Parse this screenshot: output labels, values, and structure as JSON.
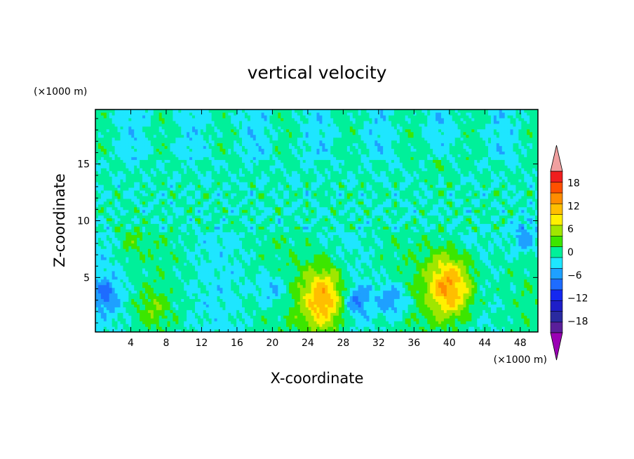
{
  "chart_data": {
    "type": "heatmap",
    "title": "vertical velocity",
    "xlabel": "X-coordinate",
    "ylabel": "Z-coordinate",
    "x_unit": "(×1000 m)",
    "y_unit": "(×1000 m)",
    "xlim": [
      0,
      50
    ],
    "ylim": [
      0.2,
      19.8
    ],
    "x_ticks": [
      4,
      8,
      12,
      16,
      20,
      24,
      28,
      32,
      36,
      40,
      44,
      48
    ],
    "y_ticks": [
      5,
      10,
      15
    ],
    "x_tick_labels": [
      "4",
      "8",
      "12",
      "16",
      "20",
      "24",
      "28",
      "32",
      "36",
      "40",
      "44",
      "48"
    ],
    "y_tick_labels": [
      "5",
      "10",
      "15"
    ],
    "colorbar": {
      "levels": [
        -21,
        -18,
        -15,
        -12,
        -9,
        -6,
        -3,
        0,
        3,
        6,
        9,
        12,
        15,
        18,
        21
      ],
      "colors": [
        "#5a1f9a",
        "#2a2aa0",
        "#1e1ec8",
        "#1428f0",
        "#1e6cff",
        "#1ea0ff",
        "#1ee6ff",
        "#00f09a",
        "#3ce600",
        "#a0e600",
        "#fff000",
        "#ffbe00",
        "#ff8c00",
        "#ff5000",
        "#f01e1e"
      ],
      "under_color": "#9a00b4",
      "over_color": "#f0a0a0",
      "tick_values": [
        -18,
        -12,
        -6,
        0,
        6,
        12,
        18
      ],
      "tick_labels": [
        "−18",
        "−12",
        "−6",
        "0",
        "6",
        "12",
        "18"
      ]
    },
    "features": [
      {
        "kind": "updraft",
        "x": 25.8,
        "z": 3.1,
        "peak": 15
      },
      {
        "kind": "updraft",
        "x": 40.0,
        "z": 4.2,
        "peak": 16
      },
      {
        "kind": "updraft",
        "x": 6.5,
        "z": 2.3,
        "peak": 4
      },
      {
        "kind": "updraft",
        "x": 3.8,
        "z": 8.3,
        "peak": 3
      },
      {
        "kind": "updraft",
        "x": 38.8,
        "z": 15.0,
        "peak": 2
      },
      {
        "kind": "downdraft",
        "x": 1.2,
        "z": 3.5,
        "peak": -6
      },
      {
        "kind": "downdraft",
        "x": 29.5,
        "z": 3.0,
        "peak": -7
      },
      {
        "kind": "downdraft",
        "x": 33.5,
        "z": 3.0,
        "peak": -7
      },
      {
        "kind": "downdraft",
        "x": 48.5,
        "z": 8.5,
        "peak": -6
      },
      {
        "kind": "downdraft",
        "x": 20.0,
        "z": 4.0,
        "peak": -5
      }
    ]
  }
}
